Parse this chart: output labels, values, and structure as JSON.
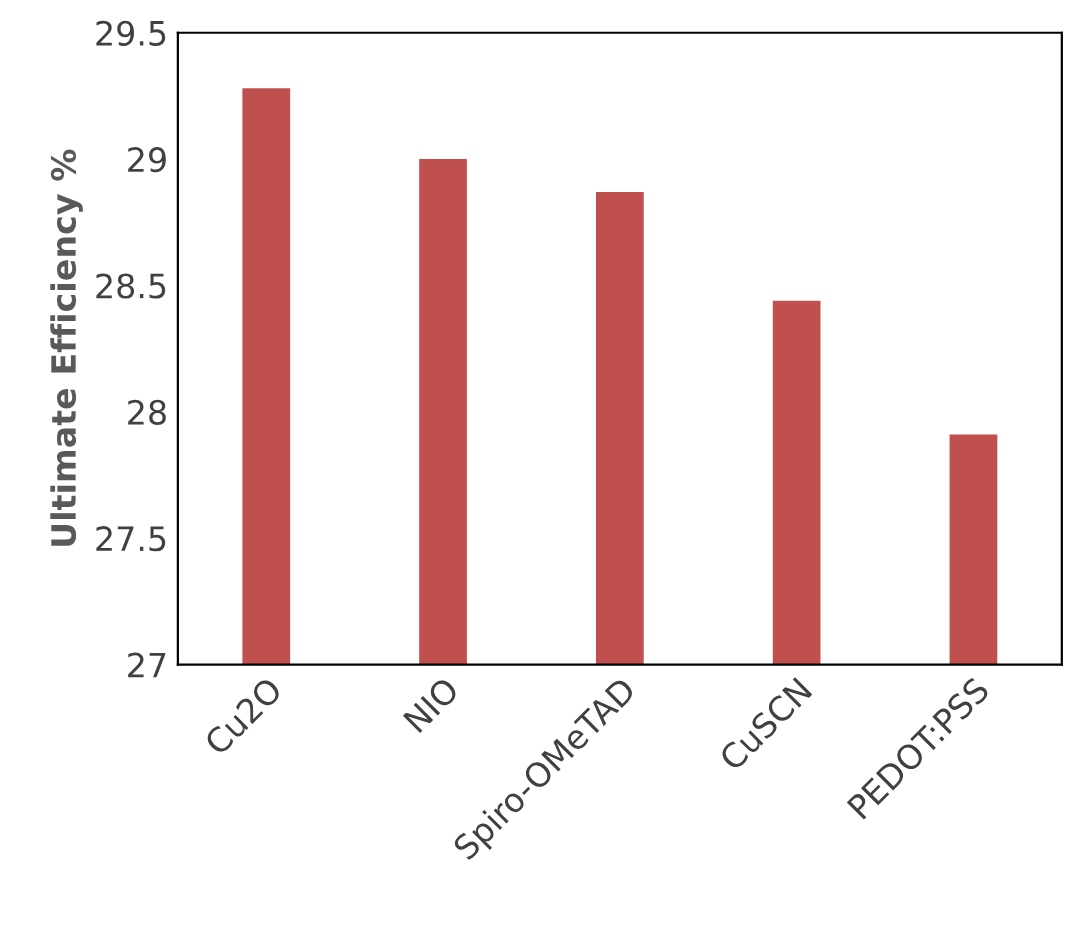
{
  "chart_data": {
    "type": "bar",
    "ylabel": "Ultimate Efficiency %",
    "categories": [
      "Cu2O",
      "NIO",
      "Spiro-OMeTAD",
      "CuSCN",
      "PEDOT:PSS"
    ],
    "values": [
      29.28,
      29.0,
      28.87,
      28.44,
      27.91
    ],
    "color": "#c0504d",
    "ylim": [
      27,
      29.5
    ],
    "yticks": [
      27,
      27.5,
      28,
      28.5,
      29,
      29.5
    ],
    "grid": false
  }
}
